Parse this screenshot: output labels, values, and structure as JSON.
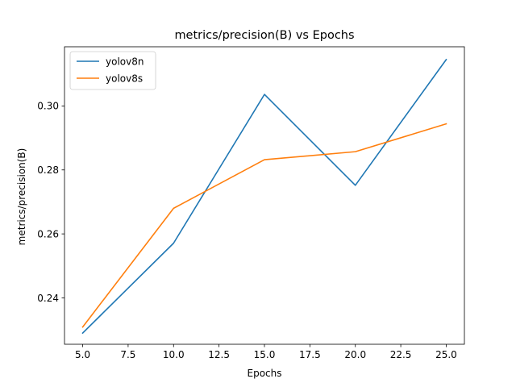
{
  "chart_data": {
    "type": "line",
    "title": "metrics/precision(B) vs Epochs",
    "xlabel": "Epochs",
    "ylabel": "metrics/precision(B)",
    "x": [
      5,
      10,
      15,
      20,
      25
    ],
    "xlim": [
      4,
      26
    ],
    "ylim": [
      0.2255,
      0.3185
    ],
    "xticks": [
      5.0,
      7.5,
      10.0,
      12.5,
      15.0,
      17.5,
      20.0,
      22.5,
      25.0
    ],
    "xtick_labels": [
      "5.0",
      "7.5",
      "10.0",
      "12.5",
      "15.0",
      "17.5",
      "20.0",
      "22.5",
      "25.0"
    ],
    "yticks": [
      0.24,
      0.26,
      0.28,
      0.3
    ],
    "ytick_labels": [
      "0.24",
      "0.26",
      "0.28",
      "0.30"
    ],
    "grid": false,
    "legend_position": "top-left",
    "series": [
      {
        "name": "yolov8n",
        "color": "#1f77b4",
        "values": [
          0.229,
          0.2571,
          0.3036,
          0.2752,
          0.3145
        ]
      },
      {
        "name": "yolov8s",
        "color": "#ff7f0e",
        "values": [
          0.2309,
          0.268,
          0.2832,
          0.2857,
          0.2944
        ]
      }
    ]
  }
}
